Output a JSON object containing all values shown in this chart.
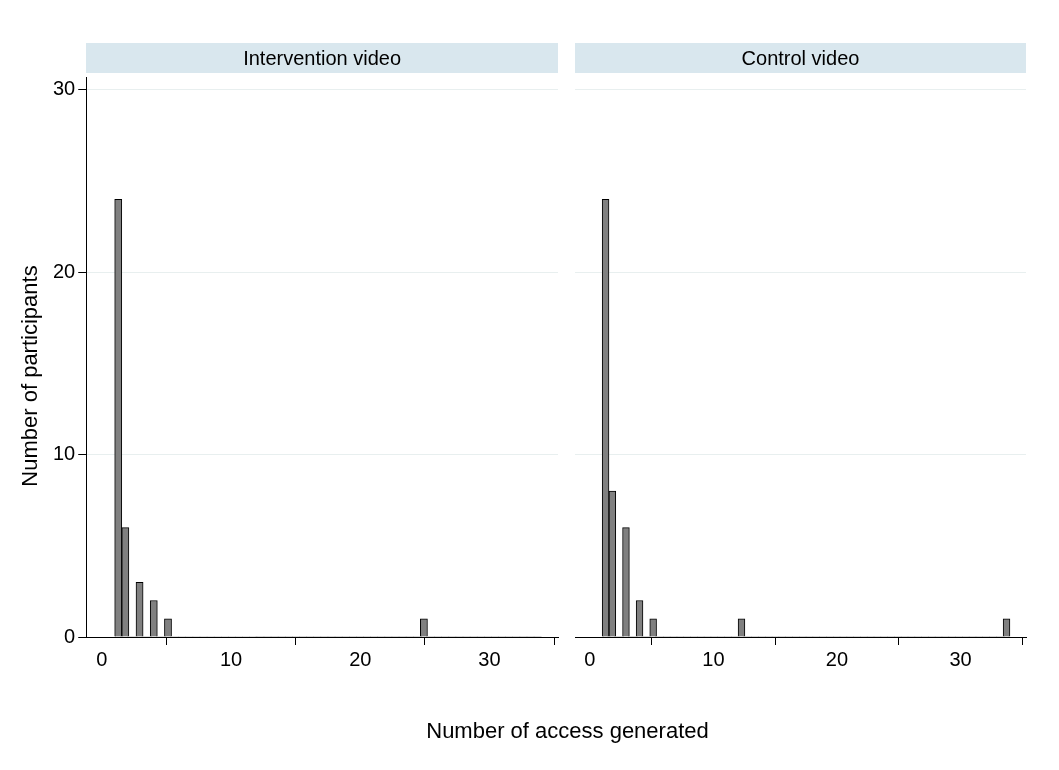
{
  "chart_data": [
    {
      "type": "histogram",
      "title": "Intervention video",
      "xlabel": "Number of access generated",
      "ylabel": "Number of participants",
      "bins": [
        1,
        1.55,
        2.1,
        2.65,
        3.2,
        3.75,
        4.3,
        4.85,
        5.4,
        5.95,
        6.5,
        7.05,
        7.6,
        8.15,
        8.7,
        9.25,
        9.8,
        10.35,
        10.9,
        11.45,
        12,
        12.55,
        13.1,
        13.65,
        14.2,
        14.75,
        15.3,
        15.85,
        16.4,
        16.95,
        17.5,
        18.05,
        18.6,
        19.15,
        19.7,
        20.25,
        20.8,
        21.35,
        21.9,
        22.45,
        23,
        23.55,
        24.1,
        24.65,
        25.2,
        25.75,
        26.3,
        26.85,
        27.4,
        27.95,
        28.5,
        29.05,
        29.6,
        30.15,
        30.7,
        31.25,
        31.8,
        32.35,
        32.9,
        33.45,
        34
      ],
      "values": [
        24,
        6,
        0,
        3,
        0,
        2,
        0,
        1,
        0,
        0,
        0,
        0,
        0,
        0,
        0,
        0,
        0,
        0,
        0,
        0,
        0,
        0,
        0,
        0,
        0,
        0,
        0,
        0,
        0,
        0,
        0,
        0,
        0,
        0,
        0,
        0,
        0,
        0,
        0,
        0,
        0,
        0,
        0,
        1,
        0,
        0,
        0,
        0,
        0,
        0,
        0,
        0,
        0,
        0,
        0,
        0,
        0,
        0,
        0,
        0
      ],
      "color": "#808080",
      "xlim": [
        -1.2,
        35.3
      ],
      "xticks": [
        0,
        10,
        20,
        30
      ],
      "ylim": [
        0,
        30.7
      ],
      "yticks": [
        0,
        10,
        20,
        30
      ],
      "grid": "y"
    },
    {
      "type": "histogram",
      "title": "Control video",
      "bins": [
        1,
        1.55,
        2.1,
        2.65,
        3.2,
        3.75,
        4.3,
        4.85,
        5.4,
        5.95,
        6.5,
        7.05,
        7.6,
        8.15,
        8.7,
        9.25,
        9.8,
        10.35,
        10.9,
        11.45,
        12,
        12.55,
        13.1,
        13.65,
        14.2,
        14.75,
        15.3,
        15.85,
        16.4,
        16.95,
        17.5,
        18.05,
        18.6,
        19.15,
        19.7,
        20.25,
        20.8,
        21.35,
        21.9,
        22.45,
        23,
        23.55,
        24.1,
        24.65,
        25.2,
        25.75,
        26.3,
        26.85,
        27.4,
        27.95,
        28.5,
        29.05,
        29.6,
        30.15,
        30.7,
        31.25,
        31.8,
        32.35,
        32.9,
        33.45,
        34
      ],
      "values": [
        24,
        8,
        0,
        6,
        0,
        2,
        0,
        1,
        0,
        0,
        0,
        0,
        0,
        0,
        0,
        0,
        0,
        0,
        0,
        0,
        1,
        0,
        0,
        0,
        0,
        0,
        0,
        0,
        0,
        0,
        0,
        0,
        0,
        0,
        0,
        0,
        0,
        0,
        0,
        0,
        0,
        0,
        0,
        0,
        0,
        0,
        0,
        0,
        0,
        0,
        0,
        0,
        0,
        0,
        0,
        0,
        0,
        0,
        0,
        1
      ],
      "color": "#808080",
      "xlim": [
        -1.2,
        35.3
      ],
      "xticks": [
        0,
        10,
        20,
        30
      ],
      "ylim": [
        0,
        30
      ],
      "yticks": [
        0,
        10,
        20,
        30
      ],
      "grid": "y",
      "tick_labels": "x"
    }
  ]
}
